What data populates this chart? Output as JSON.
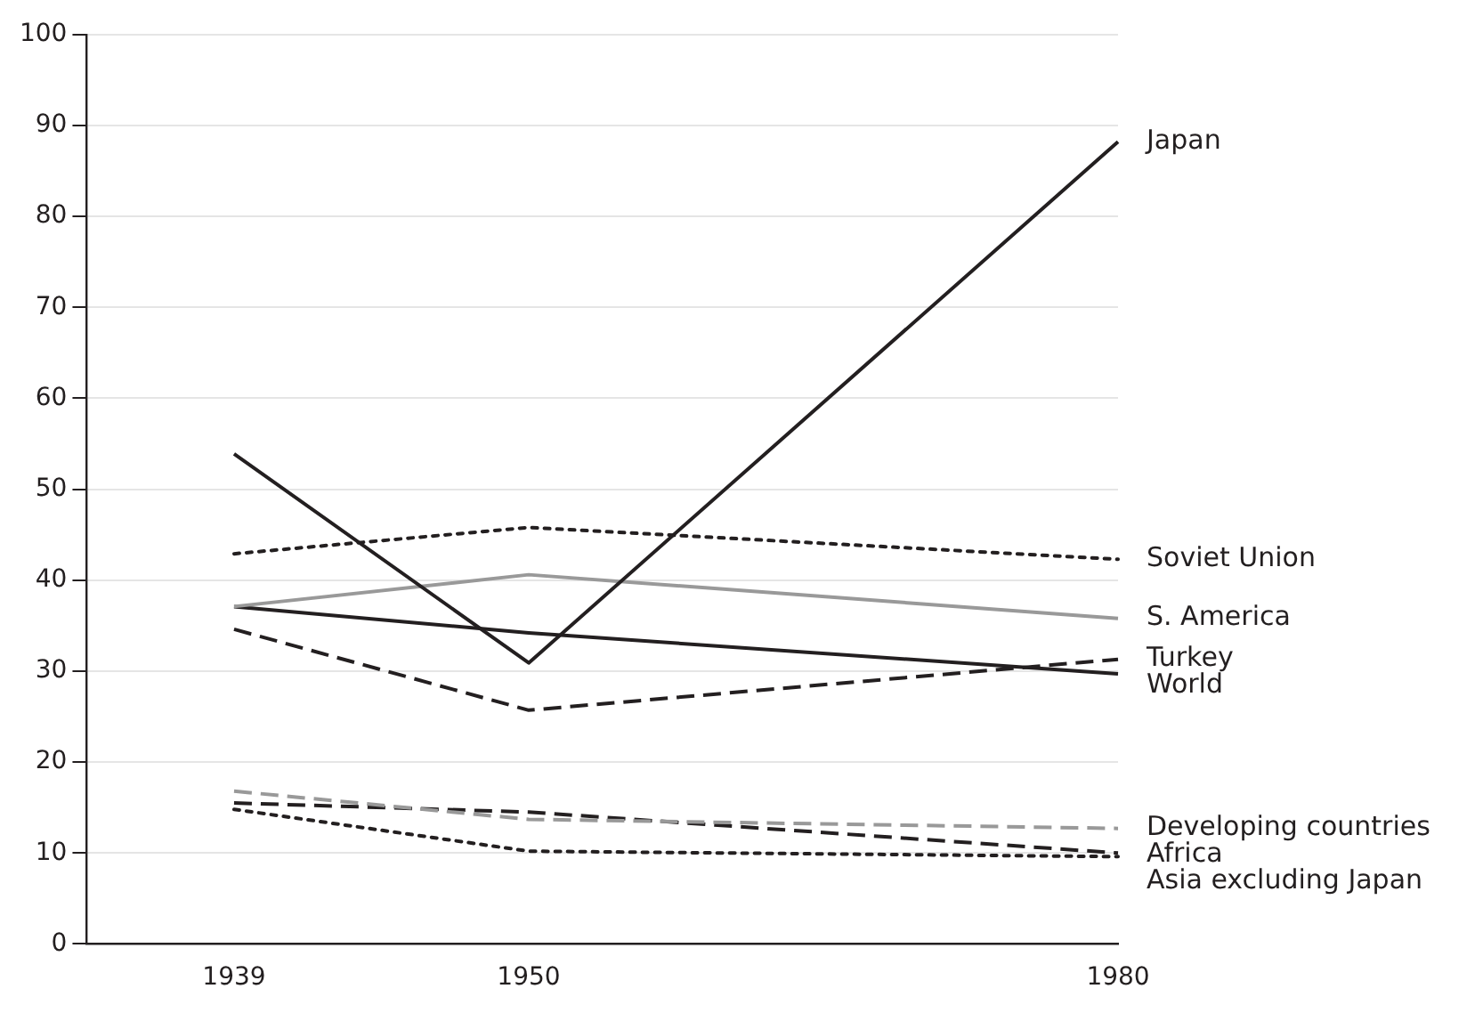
{
  "chart_data": {
    "type": "line",
    "categories": [
      null,
      "1939",
      null,
      "1950",
      null,
      null,
      null,
      "1980"
    ],
    "ylim": [
      0,
      100
    ],
    "yticks": [
      0,
      10,
      20,
      30,
      40,
      50,
      60,
      70,
      80,
      90,
      100
    ],
    "grid": "y",
    "legend": false,
    "marker": "none",
    "series": [
      {
        "name": "Japan",
        "color": "#231f20",
        "line_style": "solid",
        "values": [
          null,
          53.9,
          null,
          30.9,
          null,
          null,
          null,
          88.2
        ]
      },
      {
        "name": "Soviet Union",
        "color": "#231f20",
        "line_style": "dotted",
        "values": [
          null,
          42.9,
          null,
          45.8,
          null,
          null,
          null,
          42.3
        ]
      },
      {
        "name": "S. America",
        "color": "#999999",
        "line_style": "solid",
        "values": [
          null,
          37.1,
          null,
          40.6,
          null,
          null,
          null,
          35.8
        ]
      },
      {
        "name": "Turkey",
        "color": "#231f20",
        "line_style": "dashed",
        "values": [
          null,
          34.6,
          null,
          25.7,
          null,
          null,
          null,
          31.3
        ]
      },
      {
        "name": "World",
        "color": "#231f20",
        "line_style": "solid",
        "values": [
          null,
          37.1,
          null,
          34.2,
          null,
          null,
          null,
          29.7
        ]
      },
      {
        "name": "Developing countries",
        "color": "#999999",
        "line_style": "dashed",
        "values": [
          null,
          16.8,
          null,
          13.7,
          null,
          null,
          null,
          12.7
        ]
      },
      {
        "name": "Africa",
        "color": "#231f20",
        "line_style": "dashed",
        "values": [
          null,
          15.5,
          null,
          14.5,
          null,
          null,
          null,
          10.0
        ]
      },
      {
        "name": "Asia excluding Japan",
        "color": "#231f20",
        "line_style": "dotted",
        "values": [
          null,
          14.8,
          null,
          10.2,
          null,
          null,
          null,
          9.6
        ]
      }
    ]
  }
}
